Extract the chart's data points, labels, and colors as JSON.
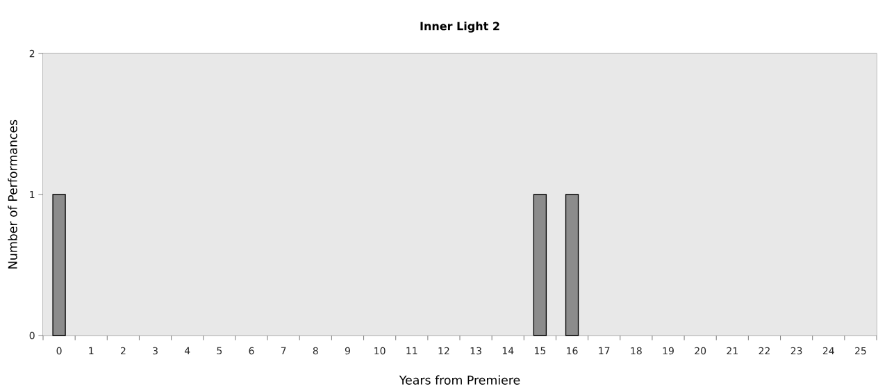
{
  "chart_data": {
    "type": "bar",
    "title": "Inner Light 2",
    "xlabel": "Years from Premiere",
    "ylabel": "Number of Performances",
    "categories": [
      "0",
      "1",
      "2",
      "3",
      "4",
      "5",
      "6",
      "7",
      "8",
      "9",
      "10",
      "11",
      "12",
      "13",
      "14",
      "15",
      "16",
      "17",
      "18",
      "19",
      "20",
      "21",
      "22",
      "23",
      "24",
      "25"
    ],
    "values": [
      1,
      0,
      0,
      0,
      0,
      0,
      0,
      0,
      0,
      0,
      0,
      0,
      0,
      0,
      0,
      1,
      1,
      0,
      0,
      0,
      0,
      0,
      0,
      0,
      0,
      0
    ],
    "color": "#8c8c8c",
    "ylim": [
      0,
      2
    ],
    "yticks": [
      0,
      1,
      2
    ],
    "grid": "y"
  }
}
